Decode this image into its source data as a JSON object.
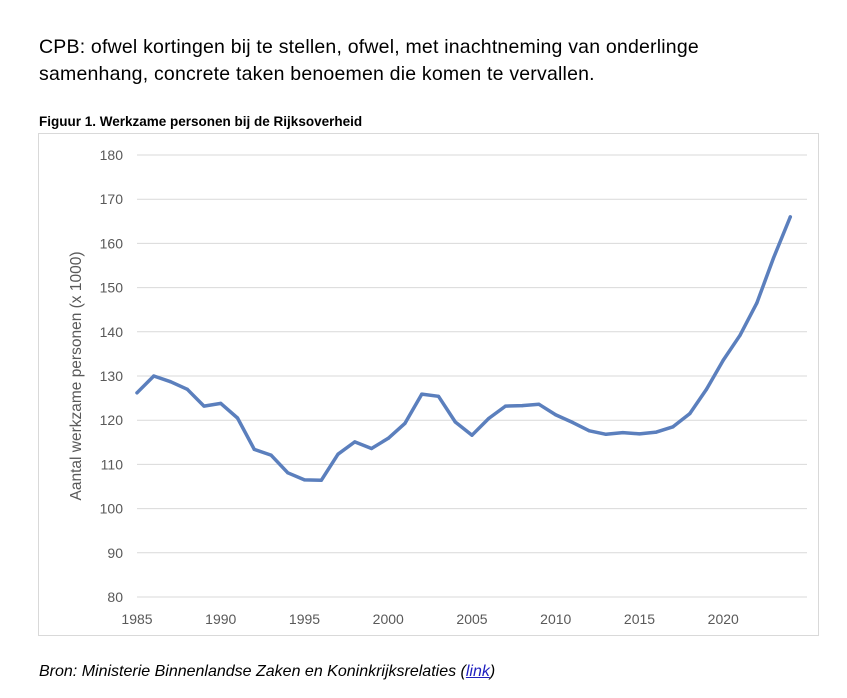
{
  "intro": {
    "line1": "CPB: ofwel kortingen bij te stellen, ofwel, met inachtneming van onderlinge",
    "line2": "samenhang, concrete taken benoemen die komen te vervallen."
  },
  "figure": {
    "title": "Figuur 1. Werkzame personen bij de Rijksoverheid"
  },
  "source": {
    "prefix": "Bron: Ministerie Binnenlandse Zaken en Koninkrijksrelaties (",
    "link_label": "link",
    "suffix": ")"
  },
  "colors": {
    "line": "#5b7fbd",
    "grid": "#d9d9d9",
    "tick_text": "#595959"
  },
  "chart_data": {
    "type": "line",
    "title": "Figuur 1. Werkzame personen bij de Rijksoverheid",
    "xlabel": "",
    "ylabel": "Aantal werkzame personen (x 1000)",
    "xlim": [
      1985,
      2025
    ],
    "ylim": [
      80,
      180
    ],
    "xticks": [
      1985,
      1990,
      1995,
      2000,
      2005,
      2010,
      2015,
      2020
    ],
    "yticks": [
      80,
      90,
      100,
      110,
      120,
      130,
      140,
      150,
      160,
      170,
      180
    ],
    "grid": "horizontal",
    "legend": "none",
    "x": [
      1985,
      1986,
      1987,
      1988,
      1989,
      1990,
      1991,
      1992,
      1993,
      1994,
      1995,
      1996,
      1997,
      1998,
      1999,
      2000,
      2001,
      2002,
      2003,
      2004,
      2005,
      2006,
      2007,
      2008,
      2009,
      2010,
      2011,
      2012,
      2013,
      2014,
      2015,
      2016,
      2017,
      2018,
      2019,
      2020,
      2021,
      2022,
      2023,
      2024
    ],
    "series": [
      {
        "values": [
          126.2,
          130.0,
          128.7,
          127.0,
          123.2,
          123.8,
          120.5,
          113.4,
          112.1,
          108.1,
          106.5,
          106.4,
          112.3,
          115.1,
          113.6,
          115.9,
          119.3,
          125.9,
          125.4,
          119.6,
          116.6,
          120.4,
          123.2,
          123.3,
          123.6,
          121.2,
          119.5,
          117.6,
          116.8,
          117.2,
          116.9,
          117.3,
          118.5,
          121.5,
          127.0,
          133.6,
          139.2,
          146.5,
          156.7,
          166.0
        ]
      }
    ]
  }
}
